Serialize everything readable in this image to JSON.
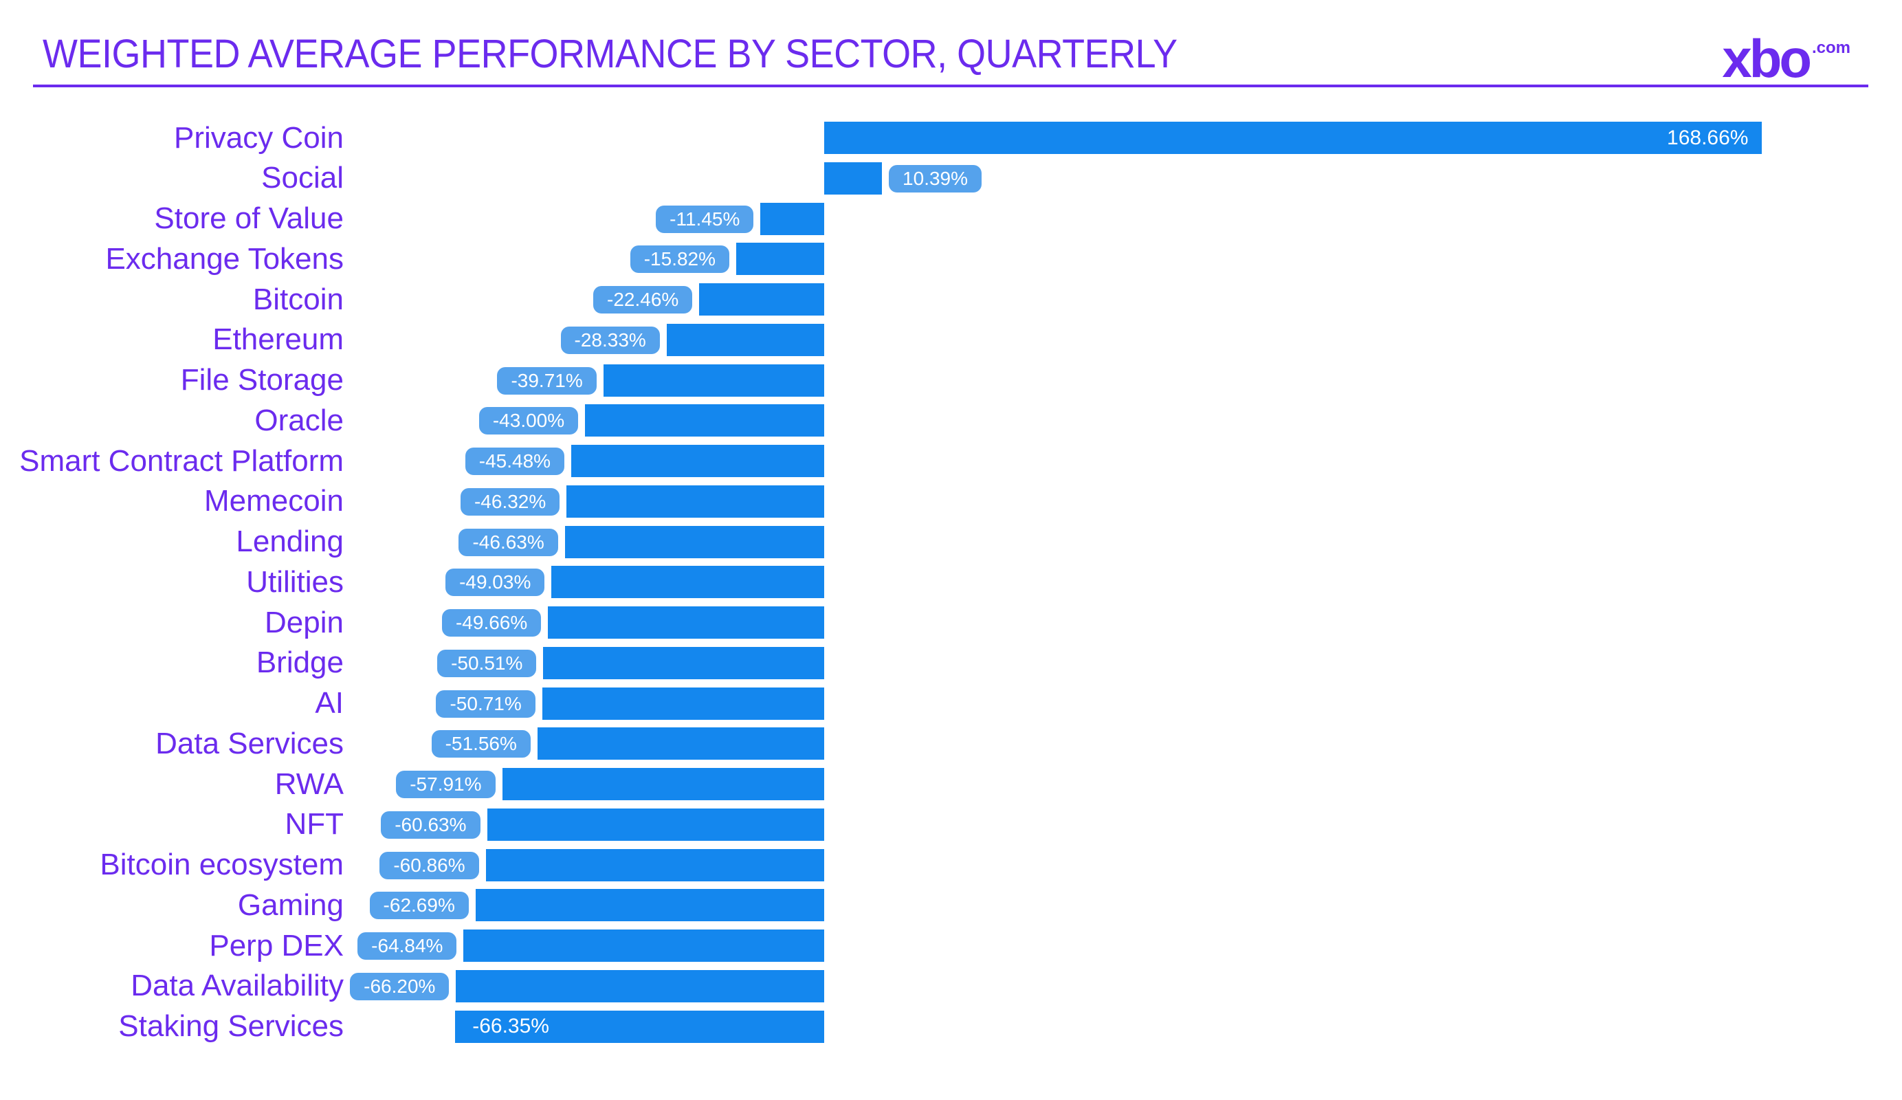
{
  "header": {
    "title": "WEIGHTED AVERAGE PERFORMANCE BY SECTOR, QUARTERLY",
    "logo": {
      "brand": "xbo",
      "suffix": ".com"
    }
  },
  "colors": {
    "accent_purple": "#6b2bee",
    "bar_blue": "#1487ee",
    "chip_blue": "#55a2ec",
    "value_text": "#ffffff",
    "background": "#ffffff"
  },
  "chart_data": {
    "type": "bar",
    "orientation": "horizontal",
    "title": "WEIGHTED AVERAGE PERFORMANCE BY SECTOR, QUARTERLY",
    "xlabel": "",
    "ylabel": "",
    "value_unit": "percent",
    "xlim": [
      -86,
      188
    ],
    "grid": false,
    "legend": "none",
    "categories": [
      "Privacy Coin",
      "Social",
      "Store of Value",
      "Exchange Tokens",
      "Bitcoin",
      "Ethereum",
      "File Storage",
      "Oracle",
      "Smart Contract Platform",
      "Memecoin",
      "Lending",
      "Utilities",
      "Depin",
      "Bridge",
      "AI",
      "Data Services",
      "RWA",
      "NFT",
      "Bitcoin ecosystem",
      "Gaming",
      "Perp DEX",
      "Data Availability",
      "Staking Services"
    ],
    "values": [
      168.66,
      10.39,
      -11.45,
      -15.82,
      -22.46,
      -28.33,
      -39.71,
      -43.0,
      -45.48,
      -46.32,
      -46.63,
      -49.03,
      -49.66,
      -50.51,
      -50.71,
      -51.56,
      -57.91,
      -60.63,
      -60.86,
      -62.69,
      -64.84,
      -66.2,
      -66.35
    ],
    "items": [
      {
        "sector": "Privacy Coin",
        "value": 168.66,
        "label": "168.66%",
        "label_placement": "inside-end"
      },
      {
        "sector": "Social",
        "value": 10.39,
        "label": "10.39%",
        "label_placement": "chip-outside"
      },
      {
        "sector": "Store of Value",
        "value": -11.45,
        "label": "-11.45%",
        "label_placement": "chip-outside"
      },
      {
        "sector": "Exchange Tokens",
        "value": -15.82,
        "label": "-15.82%",
        "label_placement": "chip-outside"
      },
      {
        "sector": "Bitcoin",
        "value": -22.46,
        "label": "-22.46%",
        "label_placement": "chip-outside"
      },
      {
        "sector": "Ethereum",
        "value": -28.33,
        "label": "-28.33%",
        "label_placement": "chip-outside"
      },
      {
        "sector": "File Storage",
        "value": -39.71,
        "label": "-39.71%",
        "label_placement": "chip-outside"
      },
      {
        "sector": "Oracle",
        "value": -43.0,
        "label": "-43.00%",
        "label_placement": "chip-outside"
      },
      {
        "sector": "Smart Contract Platform",
        "value": -45.48,
        "label": "-45.48%",
        "label_placement": "chip-outside"
      },
      {
        "sector": "Memecoin",
        "value": -46.32,
        "label": "-46.32%",
        "label_placement": "chip-outside"
      },
      {
        "sector": "Lending",
        "value": -46.63,
        "label": "-46.63%",
        "label_placement": "chip-outside"
      },
      {
        "sector": "Utilities",
        "value": -49.03,
        "label": "-49.03%",
        "label_placement": "chip-outside"
      },
      {
        "sector": "Depin",
        "value": -49.66,
        "label": "-49.66%",
        "label_placement": "chip-outside"
      },
      {
        "sector": "Bridge",
        "value": -50.51,
        "label": "-50.51%",
        "label_placement": "chip-outside"
      },
      {
        "sector": "AI",
        "value": -50.71,
        "label": "-50.71%",
        "label_placement": "chip-outside"
      },
      {
        "sector": "Data Services",
        "value": -51.56,
        "label": "-51.56%",
        "label_placement": "chip-outside"
      },
      {
        "sector": "RWA",
        "value": -57.91,
        "label": "-57.91%",
        "label_placement": "chip-outside"
      },
      {
        "sector": "NFT",
        "value": -60.63,
        "label": "-60.63%",
        "label_placement": "chip-outside"
      },
      {
        "sector": "Bitcoin ecosystem",
        "value": -60.86,
        "label": "-60.86%",
        "label_placement": "chip-outside"
      },
      {
        "sector": "Gaming",
        "value": -62.69,
        "label": "-62.69%",
        "label_placement": "chip-outside"
      },
      {
        "sector": "Perp DEX",
        "value": -64.84,
        "label": "-64.84%",
        "label_placement": "chip-outside"
      },
      {
        "sector": "Data Availability",
        "value": -66.2,
        "label": "-66.20%",
        "label_placement": "chip-outside"
      },
      {
        "sector": "Staking Services",
        "value": -66.35,
        "label": "-66.35%",
        "label_placement": "inside-start"
      }
    ]
  }
}
